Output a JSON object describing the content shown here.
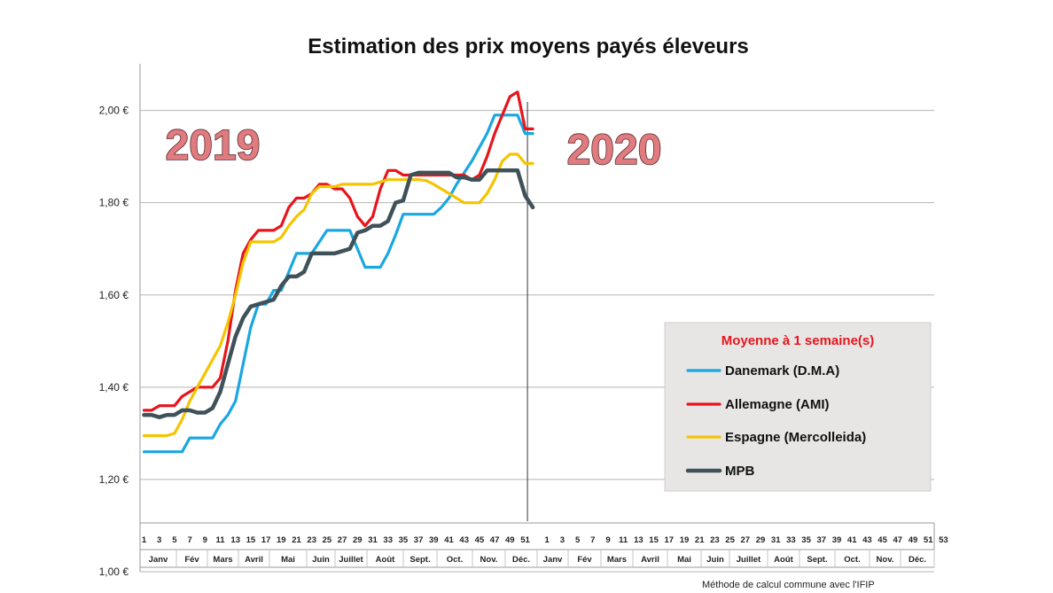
{
  "chart_data": {
    "type": "line",
    "title": "Estimation des prix moyens payés éleveurs",
    "xlabel": "",
    "ylabel": "",
    "ylim": [
      1.0,
      2.1
    ],
    "yticks": [
      {
        "value": 1.0,
        "label": "1,00 €"
      },
      {
        "value": 1.2,
        "label": "1,20 €"
      },
      {
        "value": 1.4,
        "label": "1,40 €"
      },
      {
        "value": 1.6,
        "label": "1,60 €"
      },
      {
        "value": 1.8,
        "label": "1,80 €"
      },
      {
        "value": 2.0,
        "label": "2,00 €"
      }
    ],
    "week_ticks_2019": [
      "1",
      "3",
      "5",
      "7",
      "9",
      "11",
      "13",
      "15",
      "17",
      "19",
      "21",
      "23",
      "25",
      "27",
      "29",
      "31",
      "33",
      "35",
      "37",
      "39",
      "41",
      "43",
      "45",
      "47",
      "49",
      "51"
    ],
    "week_ticks_2020": [
      "1",
      "3",
      "5",
      "7",
      "9",
      "11",
      "13",
      "15",
      "17",
      "19",
      "21",
      "23",
      "25",
      "27",
      "29",
      "31",
      "33",
      "35",
      "37",
      "39",
      "41",
      "43",
      "45",
      "47",
      "49",
      "51",
      "53"
    ],
    "months_2019": [
      "Janv",
      "Fév",
      "Mars",
      "Avril",
      "Mai",
      "Juin",
      "Juillet",
      "Août",
      "Sept.",
      "Oct.",
      "Nov.",
      "Déc."
    ],
    "months_2020": [
      "Janv",
      "Fév",
      "Mars",
      "Avril",
      "Mai",
      "Juin",
      "Juillet",
      "Août",
      "Sept.",
      "Oct.",
      "Nov.",
      "Déc."
    ],
    "year_labels": [
      "2019",
      "2020"
    ],
    "legend_title": "Moyenne à  1 semaine(s)",
    "series": [
      {
        "name": "Danemark (D.M.A)",
        "color": "#1aa7e0",
        "x": [
          1,
          3,
          5,
          6,
          7,
          8,
          9,
          10,
          11,
          12,
          13,
          14,
          15,
          16,
          17,
          18,
          19,
          20,
          21,
          22,
          23,
          24,
          25,
          26,
          27,
          28,
          29,
          30,
          31,
          32,
          33,
          34,
          35,
          36,
          37,
          38,
          39,
          40,
          41,
          42,
          43,
          44,
          45,
          46,
          47,
          48,
          49,
          50,
          51,
          52
        ],
        "y": [
          1.26,
          1.26,
          1.26,
          1.26,
          1.29,
          1.29,
          1.29,
          1.29,
          1.32,
          1.34,
          1.37,
          1.45,
          1.53,
          1.58,
          1.58,
          1.61,
          1.61,
          1.65,
          1.69,
          1.69,
          1.69,
          1.715,
          1.74,
          1.74,
          1.74,
          1.74,
          1.7,
          1.66,
          1.66,
          1.66,
          1.69,
          1.73,
          1.775,
          1.775,
          1.775,
          1.775,
          1.775,
          1.79,
          1.81,
          1.84,
          1.865,
          1.89,
          1.92,
          1.95,
          1.99,
          1.99,
          1.99,
          1.99,
          1.95,
          1.95
        ]
      },
      {
        "name": "Allemagne (AMI)",
        "color": "#e8141c",
        "x": [
          1,
          2,
          3,
          4,
          5,
          6,
          7,
          8,
          9,
          10,
          11,
          12,
          13,
          14,
          15,
          16,
          17,
          18,
          19,
          20,
          21,
          22,
          23,
          24,
          25,
          26,
          27,
          28,
          29,
          30,
          31,
          32,
          33,
          34,
          35,
          36,
          37,
          38,
          39,
          40,
          41,
          42,
          43,
          44,
          45,
          46,
          47,
          48,
          49,
          50,
          51,
          52
        ],
        "y": [
          1.35,
          1.35,
          1.36,
          1.36,
          1.36,
          1.38,
          1.39,
          1.4,
          1.4,
          1.4,
          1.42,
          1.5,
          1.61,
          1.69,
          1.72,
          1.74,
          1.74,
          1.74,
          1.75,
          1.79,
          1.81,
          1.81,
          1.82,
          1.84,
          1.84,
          1.83,
          1.83,
          1.81,
          1.77,
          1.75,
          1.77,
          1.83,
          1.87,
          1.87,
          1.86,
          1.86,
          1.86,
          1.86,
          1.86,
          1.86,
          1.86,
          1.86,
          1.86,
          1.85,
          1.86,
          1.9,
          1.95,
          1.99,
          2.03,
          2.04,
          1.96,
          1.96
        ]
      },
      {
        "name": "Espagne (Mercolleida)",
        "color": "#f5c400",
        "x": [
          1,
          2,
          3,
          4,
          5,
          6,
          7,
          8,
          9,
          10,
          11,
          12,
          13,
          14,
          15,
          16,
          17,
          18,
          19,
          20,
          21,
          22,
          23,
          24,
          25,
          26,
          27,
          28,
          29,
          30,
          31,
          32,
          33,
          34,
          35,
          36,
          37,
          38,
          39,
          40,
          41,
          42,
          43,
          44,
          45,
          46,
          47,
          48,
          49,
          50,
          51,
          52
        ],
        "y": [
          1.295,
          1.295,
          1.295,
          1.295,
          1.3,
          1.33,
          1.37,
          1.4,
          1.43,
          1.46,
          1.49,
          1.54,
          1.6,
          1.67,
          1.715,
          1.715,
          1.715,
          1.715,
          1.725,
          1.75,
          1.77,
          1.785,
          1.82,
          1.835,
          1.835,
          1.835,
          1.84,
          1.84,
          1.84,
          1.84,
          1.84,
          1.845,
          1.85,
          1.85,
          1.85,
          1.85,
          1.85,
          1.848,
          1.84,
          1.83,
          1.82,
          1.81,
          1.8,
          1.8,
          1.8,
          1.82,
          1.85,
          1.89,
          1.905,
          1.905,
          1.885,
          1.885
        ]
      },
      {
        "name": "MPB",
        "color": "#3f5259",
        "x": [
          1,
          2,
          3,
          4,
          5,
          6,
          7,
          8,
          9,
          10,
          11,
          12,
          13,
          14,
          15,
          16,
          17,
          18,
          19,
          20,
          21,
          22,
          23,
          24,
          25,
          26,
          27,
          28,
          29,
          30,
          31,
          32,
          33,
          34,
          35,
          36,
          37,
          38,
          39,
          40,
          41,
          42,
          43,
          44,
          45,
          46,
          47,
          48,
          49,
          50,
          51,
          52
        ],
        "y": [
          1.34,
          1.34,
          1.335,
          1.34,
          1.34,
          1.35,
          1.35,
          1.345,
          1.345,
          1.355,
          1.39,
          1.45,
          1.51,
          1.55,
          1.575,
          1.58,
          1.585,
          1.59,
          1.62,
          1.64,
          1.64,
          1.65,
          1.69,
          1.69,
          1.69,
          1.69,
          1.695,
          1.7,
          1.735,
          1.74,
          1.75,
          1.75,
          1.76,
          1.8,
          1.805,
          1.86,
          1.865,
          1.865,
          1.865,
          1.865,
          1.865,
          1.855,
          1.855,
          1.85,
          1.85,
          1.87,
          1.87,
          1.87,
          1.87,
          1.87,
          1.815,
          1.79
        ]
      }
    ],
    "week_divider": 52,
    "grid": true,
    "legend_position": "bottom-right"
  },
  "footnote": "Méthode de calcul commune avec l'IFIP"
}
